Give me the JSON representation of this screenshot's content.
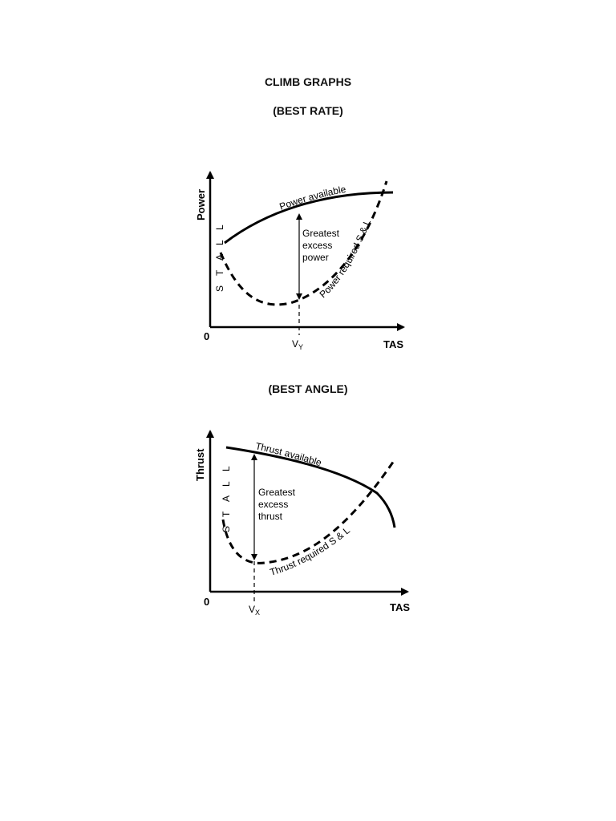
{
  "page": {
    "title": "CLIMB GRAPHS",
    "subtitle_rate": "(BEST RATE)",
    "subtitle_angle": "(BEST ANGLE)"
  },
  "graph_rate": {
    "y_axis": "Power",
    "x_axis": "TAS",
    "origin": "0",
    "stall_letters": [
      "S",
      "T",
      "A",
      "L",
      "L"
    ],
    "curve_available": "Power available",
    "curve_required": "Power required S & L",
    "excess_lines": [
      "Greatest",
      "excess",
      "power"
    ],
    "marker_main": "V",
    "marker_sub": "Y"
  },
  "graph_angle": {
    "y_axis": "Thrust",
    "x_axis": "TAS",
    "origin": "0",
    "stall_letters": [
      "S",
      "T",
      "A",
      "L",
      "L"
    ],
    "curve_available": "Thrust available",
    "curve_required": "Thrust required S & L",
    "excess_lines": [
      "Greatest",
      "excess",
      "thrust"
    ],
    "marker_main": "V",
    "marker_sub": "X"
  }
}
